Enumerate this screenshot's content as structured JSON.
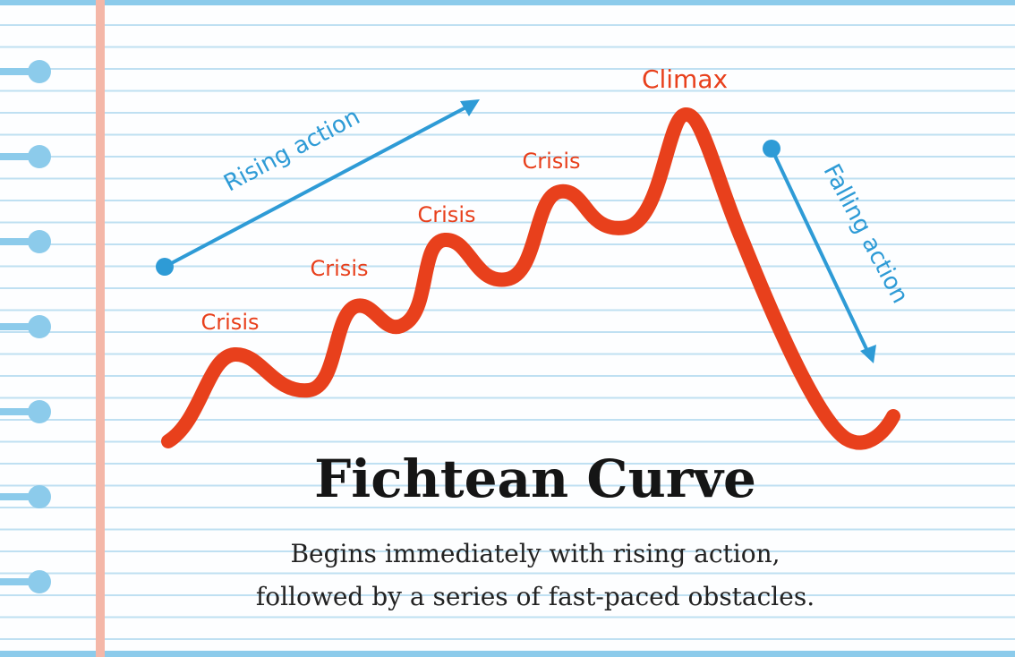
{
  "labels": {
    "rising": "Rising action",
    "falling": "Falling action",
    "climax": "Climax",
    "crises": [
      "Crisis",
      "Crisis",
      "Crisis",
      "Crisis"
    ]
  },
  "title": "Fichtean Curve",
  "subtitle": [
    "Begins immediately with rising action,",
    "followed by a series of fast-paced obstacles."
  ]
}
